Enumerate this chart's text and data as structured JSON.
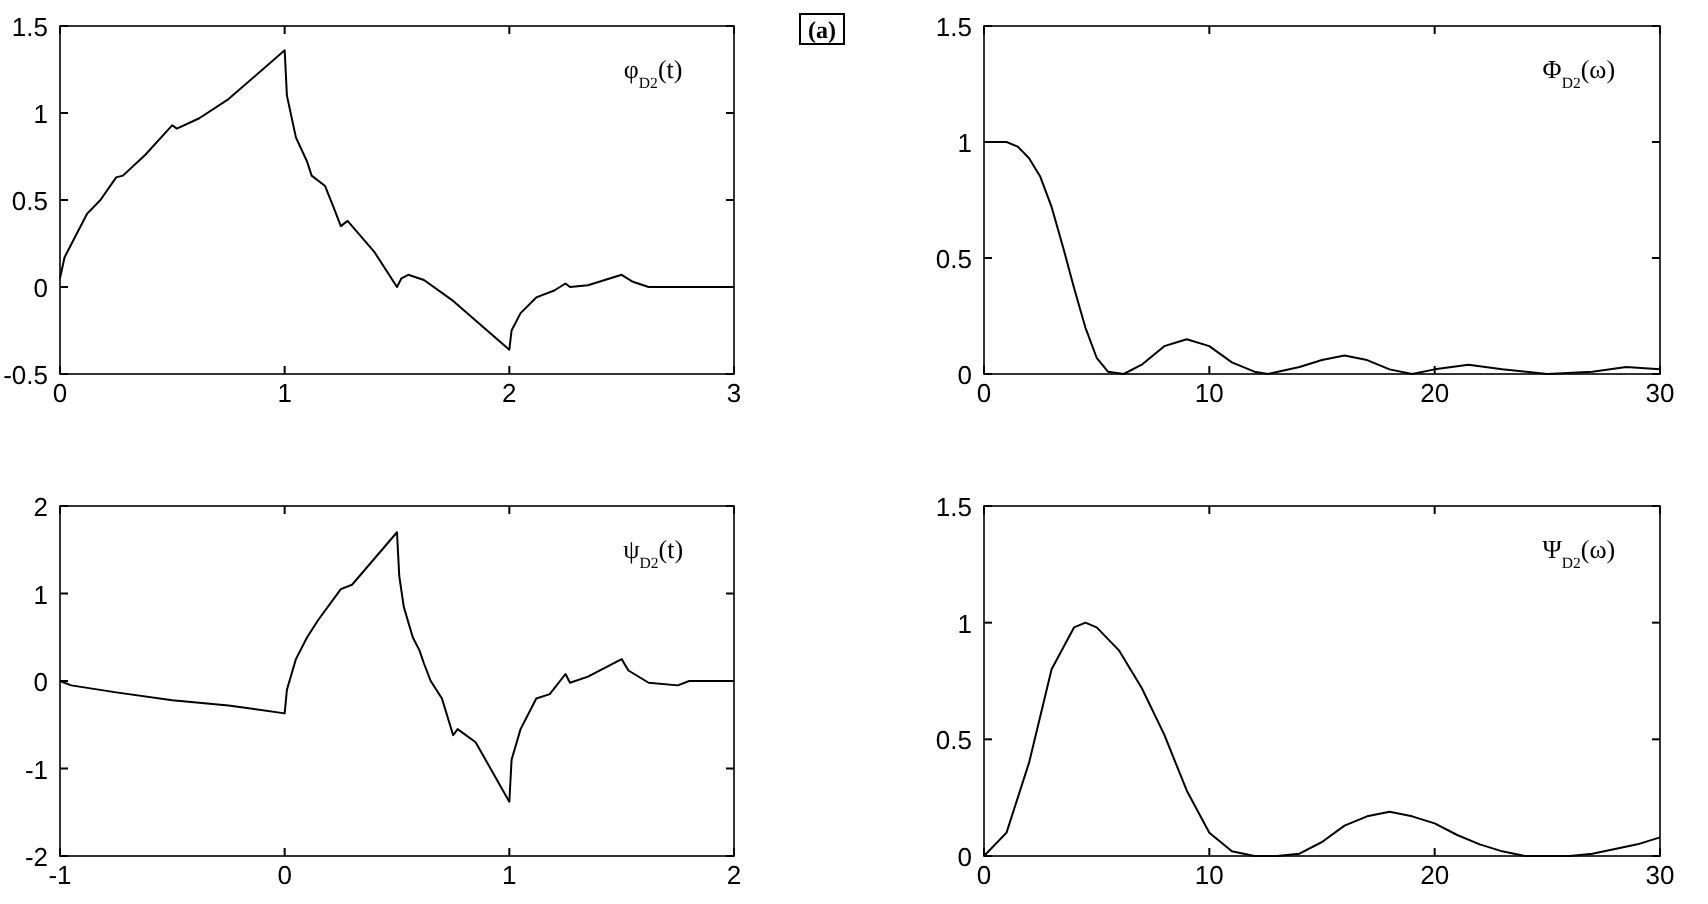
{
  "chart_data": [
    {
      "type": "line",
      "annotations": [
        "φ$_{D2}$(t)"
      ],
      "xlim": [
        0,
        3
      ],
      "xticks": [
        0,
        1,
        2,
        3
      ],
      "ylim": [
        -0.5,
        1.5
      ],
      "yticks": [
        {
          "value": -0.5,
          "label": "-0.5"
        },
        0,
        0.5,
        1,
        1.5
      ],
      "grid": false,
      "series": [
        {
          "color": "#000000",
          "x": [
            0,
            0.02,
            0.06,
            0.12,
            0.18,
            0.25,
            0.28,
            0.38,
            0.5,
            0.52,
            0.62,
            0.75,
            1,
            1.01,
            1.05,
            1.1,
            1.12,
            1.18,
            1.22,
            1.25,
            1.28,
            1.4,
            1.5,
            1.52,
            1.55,
            1.62,
            1.75,
            2,
            2.01,
            2.05,
            2.12,
            2.2,
            2.25,
            2.27,
            2.35,
            2.5,
            2.55,
            2.62,
            2.75,
            2.87,
            3
          ],
          "values": [
            0.05,
            0.17,
            0.27,
            0.42,
            0.5,
            0.63,
            0.64,
            0.76,
            0.93,
            0.91,
            0.97,
            1.08,
            1.36,
            1.1,
            0.86,
            0.72,
            0.64,
            0.58,
            0.45,
            0.35,
            0.38,
            0.2,
            0,
            0.05,
            0.07,
            0.04,
            -0.08,
            -0.36,
            -0.25,
            -0.15,
            -0.06,
            -0.02,
            0.02,
            0,
            0.01,
            0.07,
            0.03,
            0,
            0,
            0,
            0
          ]
        }
      ]
    },
    {
      "type": "line",
      "title": "(a)",
      "annotations": [
        "Φ$_{D2}$(ω)"
      ],
      "xlim": [
        0,
        30
      ],
      "xticks": [
        0,
        10,
        20,
        30
      ],
      "ylim": [
        0,
        1.5
      ],
      "yticks": [
        0,
        0.5,
        1,
        1.5
      ],
      "grid": false,
      "series": [
        {
          "color": "#000000",
          "x": [
            0,
            1,
            1.5,
            2,
            2.5,
            3,
            3.5,
            4,
            4.5,
            5,
            5.5,
            6.2,
            7,
            8,
            9,
            10,
            11,
            12,
            12.6,
            14,
            15,
            16,
            17,
            18,
            19,
            20,
            21.5,
            23,
            25,
            27,
            28.5,
            30
          ],
          "values": [
            1,
            1,
            0.98,
            0.93,
            0.85,
            0.72,
            0.55,
            0.37,
            0.2,
            0.07,
            0.01,
            0,
            0.04,
            0.12,
            0.15,
            0.12,
            0.05,
            0.01,
            0,
            0.03,
            0.06,
            0.08,
            0.06,
            0.02,
            0,
            0.02,
            0.04,
            0.02,
            0,
            0.01,
            0.03,
            0.02
          ]
        }
      ]
    },
    {
      "type": "line",
      "annotations": [
        "ψ$_{D2}$(t)"
      ],
      "xlim": [
        -1,
        2
      ],
      "xticks": [
        -1,
        0,
        1,
        2
      ],
      "ylim": [
        -2,
        2
      ],
      "yticks": [
        -2,
        -1,
        0,
        1,
        2
      ],
      "grid": false,
      "series": [
        {
          "color": "#000000",
          "x": [
            -1,
            -0.95,
            -0.75,
            -0.5,
            -0.25,
            0,
            0.01,
            0.05,
            0.1,
            0.15,
            0.25,
            0.3,
            0.5,
            0.51,
            0.53,
            0.57,
            0.6,
            0.62,
            0.65,
            0.7,
            0.75,
            0.77,
            0.85,
            1,
            1.01,
            1.05,
            1.1,
            1.12,
            1.18,
            1.25,
            1.27,
            1.35,
            1.5,
            1.53,
            1.62,
            1.75,
            1.8,
            1.9,
            2
          ],
          "values": [
            0,
            -0.05,
            -0.13,
            -0.22,
            -0.28,
            -0.37,
            -0.1,
            0.25,
            0.5,
            0.7,
            1.05,
            1.1,
            1.7,
            1.2,
            0.85,
            0.5,
            0.35,
            0.2,
            0,
            -0.2,
            -0.62,
            -0.55,
            -0.7,
            -1.38,
            -0.9,
            -0.55,
            -0.3,
            -0.2,
            -0.15,
            0.08,
            -0.02,
            0.05,
            0.25,
            0.12,
            -0.02,
            -0.05,
            0,
            0,
            0
          ]
        }
      ]
    },
    {
      "type": "line",
      "annotations": [
        "Ψ$_{D2}$(ω)"
      ],
      "xlim": [
        0,
        30
      ],
      "xticks": [
        0,
        10,
        20,
        30
      ],
      "ylim": [
        0,
        1.5
      ],
      "yticks": [
        0,
        0.5,
        1,
        1.5
      ],
      "grid": false,
      "series": [
        {
          "color": "#000000",
          "x": [
            0,
            1,
            2,
            3,
            4,
            4.5,
            5,
            6,
            7,
            8,
            9,
            10,
            11,
            12,
            13,
            14,
            15,
            16,
            17,
            18,
            19,
            20,
            21,
            22,
            23,
            24,
            26,
            27,
            28,
            29,
            30
          ],
          "values": [
            0,
            0.1,
            0.4,
            0.8,
            0.98,
            1,
            0.98,
            0.88,
            0.72,
            0.52,
            0.28,
            0.1,
            0.02,
            0,
            0,
            0.01,
            0.06,
            0.13,
            0.17,
            0.19,
            0.17,
            0.14,
            0.09,
            0.05,
            0.02,
            0,
            0,
            0.01,
            0.03,
            0.05,
            0.08
          ]
        }
      ]
    }
  ]
}
